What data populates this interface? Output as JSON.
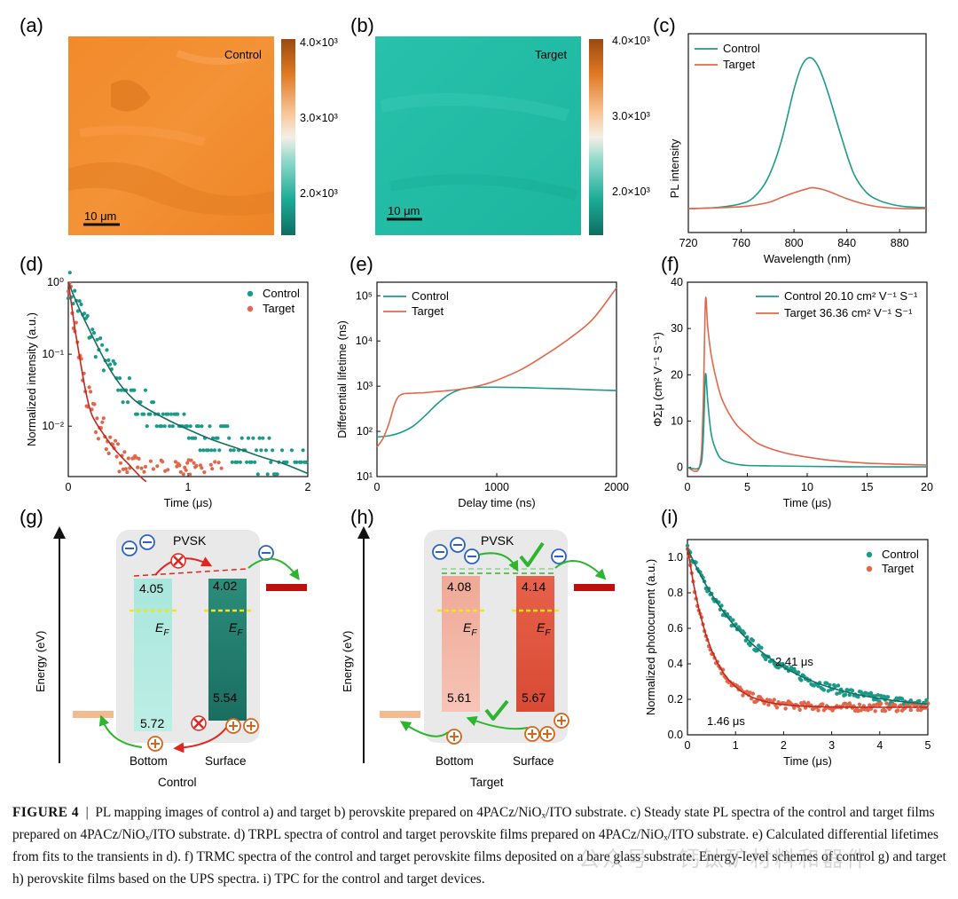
{
  "panels": {
    "a": {
      "label": "(a)",
      "map_label": "Control",
      "scalebar": "10 μm",
      "cbar_ticks": [
        "4.0×10³",
        "3.0×10³",
        "2.0×10³"
      ]
    },
    "b": {
      "label": "(b)",
      "map_label": "Target",
      "scalebar": "10 μm",
      "cbar_ticks": [
        "4.0×10³",
        "3.0×10³",
        "2.0×10³"
      ]
    },
    "c": {
      "label": "(c)"
    },
    "d": {
      "label": "(d)"
    },
    "e": {
      "label": "(e)"
    },
    "f": {
      "label": "(f)"
    },
    "g": {
      "label": "(g)",
      "title": "Control",
      "pvsk": "PVSK",
      "left_top": "4.05",
      "right_top": "4.02",
      "left_bottom": "5.72",
      "right_bottom": "5.54",
      "ef": "E",
      "ef_sub": "F",
      "bottom": "Bottom",
      "surface": "Surface",
      "yaxis": "Energy (eV)"
    },
    "h": {
      "label": "(h)",
      "title": "Target",
      "pvsk": "PVSK",
      "left_top": "4.08",
      "right_top": "4.14",
      "left_bottom": "5.61",
      "right_bottom": "5.67",
      "ef": "E",
      "ef_sub": "F",
      "bottom": "Bottom",
      "surface": "Surface",
      "yaxis": "Energy (eV)"
    },
    "i": {
      "label": "(i)"
    }
  },
  "colors": {
    "control": "#1b9a89",
    "target": "#e2674a",
    "control_dark": "#156e60",
    "target_dark": "#c0281f"
  },
  "chart_data": [
    {
      "id": "c",
      "type": "line",
      "ylabel": "PL intensity",
      "xlabel": "Wavelength (nm)",
      "xlim": [
        720,
        900
      ],
      "xticks": [
        720,
        760,
        800,
        840,
        880
      ],
      "legend": [
        "Control",
        "Target"
      ],
      "series": [
        {
          "name": "Control",
          "x": [
            720,
            740,
            760,
            770,
            780,
            790,
            800,
            806,
            812,
            818,
            825,
            835,
            845,
            855,
            865,
            875,
            885,
            900
          ],
          "y": [
            0.12,
            0.125,
            0.145,
            0.18,
            0.27,
            0.45,
            0.72,
            0.84,
            0.88,
            0.84,
            0.72,
            0.5,
            0.3,
            0.2,
            0.16,
            0.14,
            0.13,
            0.125
          ]
        },
        {
          "name": "Target",
          "x": [
            720,
            760,
            780,
            790,
            800,
            810,
            815,
            825,
            840,
            855,
            870,
            885,
            900
          ],
          "y": [
            0.12,
            0.13,
            0.15,
            0.175,
            0.2,
            0.22,
            0.225,
            0.21,
            0.17,
            0.14,
            0.125,
            0.12,
            0.12
          ]
        }
      ]
    },
    {
      "id": "d",
      "type": "scatter",
      "ylabel": "Normalized intensity (a.u.)",
      "xlabel": "Time (μs)",
      "xlim": [
        0,
        2
      ],
      "ylim_log10": [
        -2.7,
        0
      ],
      "yscale": "log",
      "xticks": [
        0,
        1,
        2
      ],
      "ytick_labels": [
        "10⁰",
        "10⁻¹",
        "10⁻²"
      ],
      "legend": [
        "Control",
        "Target"
      ],
      "series": [
        {
          "name": "Control fit",
          "x": [
            0,
            0.05,
            0.1,
            0.2,
            0.3,
            0.4,
            0.5,
            0.6,
            0.8,
            1.0,
            1.2,
            1.4,
            1.6,
            1.8,
            2.0
          ],
          "y": [
            1,
            0.62,
            0.4,
            0.18,
            0.085,
            0.045,
            0.028,
            0.02,
            0.013,
            0.009,
            0.0065,
            0.005,
            0.0038,
            0.003,
            0.0022
          ]
        },
        {
          "name": "Target fit",
          "x": [
            0,
            0.03,
            0.06,
            0.1,
            0.15,
            0.2,
            0.3,
            0.4,
            0.5,
            0.6,
            0.65
          ],
          "y": [
            1,
            0.45,
            0.2,
            0.08,
            0.028,
            0.014,
            0.0075,
            0.0045,
            0.003,
            0.002,
            0.0017
          ]
        }
      ]
    },
    {
      "id": "e",
      "type": "line",
      "ylabel": "Differential lifetime (ns)",
      "xlabel": "Delay time (ns)",
      "xlim": [
        0,
        2000
      ],
      "ylim_log10": [
        1,
        5.3
      ],
      "yscale": "log",
      "xticks": [
        0,
        1000,
        2000
      ],
      "legend": [
        "Control",
        "Target"
      ],
      "series": [
        {
          "name": "Control",
          "x": [
            0,
            100,
            200,
            300,
            400,
            500,
            600,
            700,
            800,
            900,
            1000,
            1200,
            1400,
            1600,
            1800,
            2000
          ],
          "y": [
            75,
            80,
            95,
            130,
            220,
            400,
            650,
            850,
            930,
            950,
            950,
            930,
            900,
            870,
            830,
            800
          ]
        },
        {
          "name": "Target",
          "x": [
            0,
            50,
            100,
            150,
            200,
            300,
            400,
            500,
            600,
            700,
            800,
            900,
            1000,
            1200,
            1400,
            1600,
            1800,
            2000
          ],
          "y": [
            45,
            70,
            150,
            420,
            650,
            700,
            720,
            760,
            800,
            860,
            950,
            1100,
            1350,
            2300,
            4800,
            11000,
            30000,
            150000
          ]
        }
      ]
    },
    {
      "id": "f",
      "type": "line",
      "ylabel": "ΦΣμ (cm² V⁻¹ S⁻¹)",
      "xlabel": "Time (μs)",
      "xlim": [
        0,
        20
      ],
      "ylim": [
        0,
        40
      ],
      "xticks": [
        0,
        5,
        10,
        15,
        20
      ],
      "yticks": [
        0,
        10,
        20,
        30,
        40
      ],
      "legend": [
        "Control  20.10 cm² V⁻¹ S⁻¹",
        "Target  36.36 cm² V⁻¹ S⁻¹"
      ],
      "series": [
        {
          "name": "Control",
          "x": [
            0,
            1.0,
            1.3,
            1.5,
            1.7,
            2.0,
            2.5,
            3,
            4,
            5,
            7,
            10,
            15,
            20
          ],
          "y": [
            0,
            0,
            5,
            20,
            14,
            7,
            3,
            1.5,
            0.7,
            0.4,
            0.3,
            0.2,
            0.1,
            0.1
          ]
        },
        {
          "name": "Target",
          "x": [
            0,
            1.0,
            1.3,
            1.5,
            1.7,
            2.0,
            2.5,
            3,
            4,
            5,
            6,
            8,
            10,
            12,
            15,
            20
          ],
          "y": [
            0,
            0,
            12,
            36,
            30,
            24,
            18,
            14,
            9.5,
            7,
            5,
            3.2,
            2.2,
            1.5,
            0.9,
            0.5
          ]
        }
      ]
    },
    {
      "id": "i",
      "type": "scatter",
      "ylabel": "Normalized photocurrent (a.u.)",
      "xlabel": "Time (μs)",
      "xlim": [
        0,
        5
      ],
      "ylim": [
        0,
        1.1
      ],
      "xticks": [
        0,
        1,
        2,
        3,
        4,
        5
      ],
      "yticks": [
        0.0,
        0.2,
        0.4,
        0.6,
        0.8,
        1.0
      ],
      "legend": [
        "Control",
        "Target"
      ],
      "annotations": [
        "2.41 μs",
        "1.46 μs"
      ],
      "series": [
        {
          "name": "Control fit",
          "tau": 2.41
        },
        {
          "name": "Target fit",
          "tau": 1.46
        }
      ]
    }
  ],
  "caption": {
    "label": "FIGURE 4",
    "separator": "|",
    "text": "PL mapping images of control a) and target b) perovskite prepared on 4PACz/NiOₓ/ITO substrate. c) Steady state PL spectra of the control and target films prepared on 4PACz/NiOₓ/ITO substrate. d) TRPL spectra of control and target perovskite films prepared on 4PACz/NiOₓ/ITO substrate. e) Calculated differential lifetimes from fits to the transients in d). f) TRMC spectra of the control and target perovskite films deposited on a bare glass substrate. Energy-level schemes of control g) and target h) perovskite films based on the UPS spectra. i) TPC for the control and target devices."
  },
  "watermark": "公众号 · 钙钛矿材料和器件"
}
